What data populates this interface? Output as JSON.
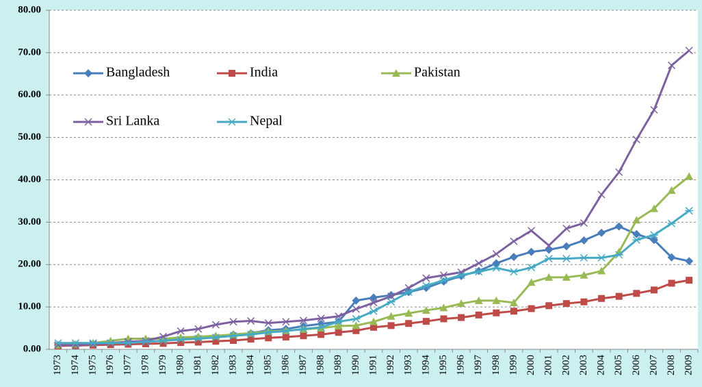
{
  "chart_data": {
    "type": "line",
    "categories": [
      "1973",
      "1974",
      "1975",
      "1976",
      "1977",
      "1978",
      "1979",
      "1980",
      "1981",
      "1982",
      "1983",
      "1984",
      "1985",
      "1986",
      "1987",
      "1988",
      "1989",
      "1990",
      "1991",
      "1992",
      "1993",
      "1994",
      "1995",
      "1996",
      "1997",
      "1998",
      "1999",
      "2000",
      "2001",
      "2002",
      "2003",
      "2004",
      "2005",
      "2006",
      "2007",
      "2008",
      "2009"
    ],
    "series": [
      {
        "name": "Bangladesh",
        "color": "#4a7ebb",
        "marker": "diamond",
        "values": [
          1.0,
          0.8,
          1.2,
          1.3,
          1.5,
          1.8,
          2.0,
          2.5,
          2.8,
          3.0,
          3.5,
          3.8,
          4.5,
          4.8,
          5.5,
          6.0,
          6.5,
          11.5,
          12.2,
          12.8,
          13.5,
          14.5,
          16.0,
          17.3,
          18.5,
          20.3,
          21.8,
          23.0,
          23.5,
          24.3,
          25.7,
          27.5,
          29.0,
          27.2,
          25.8,
          21.7,
          20.8
        ]
      },
      {
        "name": "India",
        "color": "#be4b48",
        "marker": "square",
        "values": [
          0.8,
          0.9,
          1.0,
          1.1,
          1.2,
          1.3,
          1.4,
          1.6,
          1.7,
          1.9,
          2.1,
          2.4,
          2.7,
          2.9,
          3.2,
          3.5,
          4.0,
          4.4,
          5.2,
          5.6,
          6.1,
          6.6,
          7.2,
          7.5,
          8.1,
          8.6,
          9.0,
          9.6,
          10.3,
          10.8,
          11.2,
          12.0,
          12.5,
          13.2,
          14.0,
          15.6,
          16.3
        ]
      },
      {
        "name": "Pakistan",
        "color": "#98b954",
        "marker": "triangle",
        "values": [
          1.0,
          1.2,
          1.5,
          2.0,
          2.5,
          2.5,
          2.5,
          2.8,
          3.0,
          3.2,
          3.5,
          3.8,
          4.2,
          4.4,
          4.7,
          5.0,
          5.5,
          5.6,
          6.5,
          7.8,
          8.5,
          9.2,
          9.8,
          10.8,
          11.5,
          11.5,
          11.0,
          15.8,
          17.0,
          17.0,
          17.5,
          18.5,
          23.0,
          30.5,
          33.2,
          37.5,
          40.8
        ]
      },
      {
        "name": "Sri Lanka",
        "color": "#7d60a0",
        "marker": "x",
        "values": [
          1.0,
          1.0,
          1.2,
          1.5,
          1.8,
          2.0,
          3.0,
          4.3,
          4.8,
          5.8,
          6.5,
          6.7,
          6.2,
          6.5,
          6.8,
          7.3,
          7.8,
          9.5,
          11.0,
          12.5,
          14.5,
          16.8,
          17.5,
          18.2,
          20.3,
          22.5,
          25.5,
          28.0,
          24.5,
          28.5,
          29.8,
          36.5,
          41.8,
          49.5,
          56.5,
          67.0,
          70.5
        ]
      },
      {
        "name": "Nepal",
        "color": "#46aac5",
        "marker": "star",
        "values": [
          1.5,
          1.5,
          1.5,
          1.5,
          1.5,
          1.8,
          2.0,
          2.3,
          2.5,
          2.8,
          3.2,
          3.5,
          4.0,
          4.3,
          4.8,
          5.2,
          6.5,
          7.2,
          9.0,
          11.2,
          13.5,
          15.0,
          16.3,
          17.5,
          18.3,
          19.2,
          18.3,
          19.3,
          21.4,
          21.4,
          21.6,
          21.6,
          22.3,
          25.8,
          27.0,
          29.7,
          32.7
        ]
      }
    ],
    "ylim": [
      0,
      80
    ],
    "yticks": [
      {
        "value": 0,
        "label": "0.00"
      },
      {
        "value": 10,
        "label": "10.00"
      },
      {
        "value": 20,
        "label": "20.00"
      },
      {
        "value": 30,
        "label": "30.00"
      },
      {
        "value": 40,
        "label": "40.00"
      },
      {
        "value": 50,
        "label": "50.00"
      },
      {
        "value": 60,
        "label": "60.00"
      },
      {
        "value": 70,
        "label": "70.00"
      },
      {
        "value": 80,
        "label": "80.00"
      }
    ],
    "grid": true,
    "legend": "upper left"
  }
}
